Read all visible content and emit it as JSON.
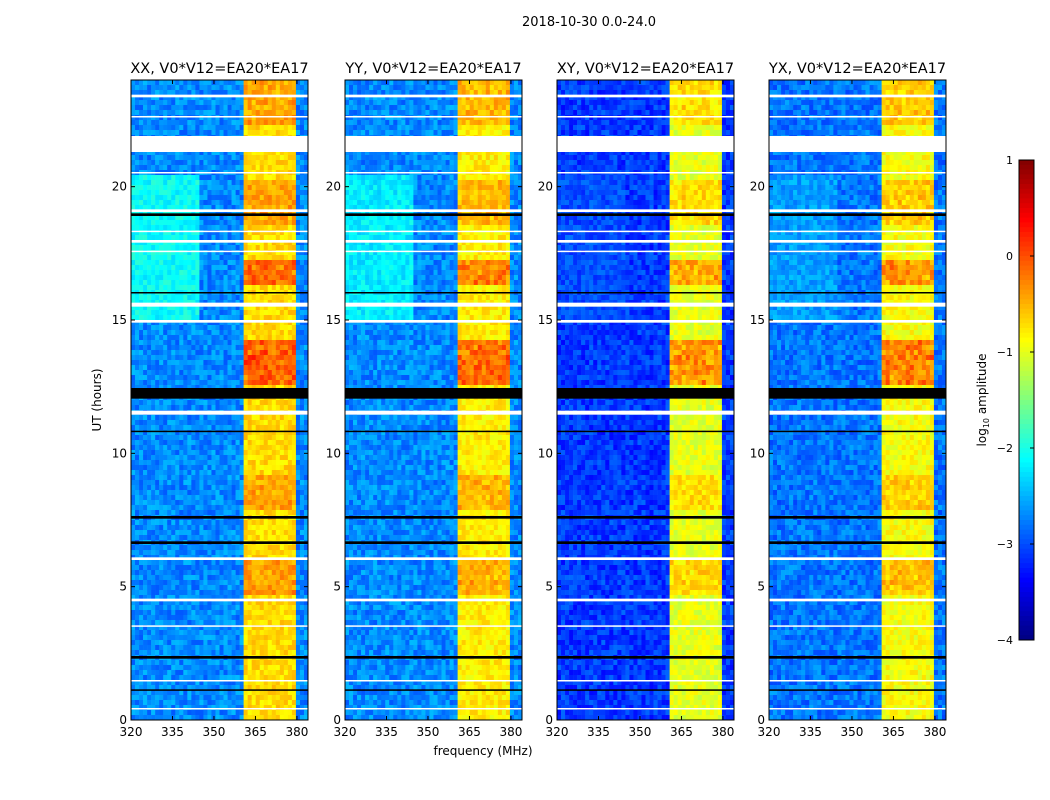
{
  "chart_data": {
    "type": "heatmap",
    "title": "2018-10-30 0.0-24.0",
    "xlabel": "frequency (MHz)",
    "ylabel": "UT (hours)",
    "xlim": [
      320,
      384
    ],
    "ylim": [
      0,
      24
    ],
    "xticks": [
      "320",
      "335",
      "350",
      "365",
      "380"
    ],
    "xtick_values": [
      320,
      335,
      350,
      365,
      380
    ],
    "yticks": [
      "0",
      "5",
      "10",
      "15",
      "20"
    ],
    "ytick_values": [
      0,
      5,
      10,
      15,
      20
    ],
    "colorbar": {
      "label_main": "log",
      "label_sub": "10",
      "label_rest": " amplitude",
      "range": [
        -4,
        1
      ],
      "ticks": [
        "1",
        "0",
        "−1",
        "−2",
        "−3",
        "−4"
      ],
      "tick_values": [
        1,
        0,
        -1,
        -2,
        -3,
        -4
      ],
      "colormap": "jet"
    },
    "panels": [
      {
        "title": "XX, V0*V12=EA20*EA17",
        "background_level": -2.7,
        "band_level": -0.7,
        "left_bright_level": -2.1
      },
      {
        "title": "YY, V0*V12=EA20*EA17",
        "background_level": -2.7,
        "band_level": -0.8,
        "left_bright_level": -2.2
      },
      {
        "title": "XY, V0*V12=EA20*EA17",
        "background_level": -3.1,
        "band_level": -1.0,
        "left_bright_level": -3.0
      },
      {
        "title": "YX, V0*V12=EA20*EA17",
        "background_level": -2.8,
        "band_level": -0.9,
        "left_bright_level": -2.6
      }
    ],
    "band_segments_mhz": [
      [
        360.5,
        364.8
      ],
      [
        365.2,
        369.6
      ],
      [
        370.0,
        374.8
      ],
      [
        375.2,
        379.6
      ]
    ],
    "bright_hours": [
      [
        12.6,
        14.3,
        0.7
      ],
      [
        16.4,
        17.2,
        0.6
      ],
      [
        7.9,
        9.2,
        0.3
      ],
      [
        4.6,
        6.0,
        0.35
      ],
      [
        18.6,
        20.3,
        0.3
      ],
      [
        22.3,
        24,
        0.3
      ]
    ],
    "flagged_hours_white": [
      [
        21.3,
        21.9
      ],
      [
        19.05,
        19.15
      ],
      [
        15.5,
        15.65
      ],
      [
        11.45,
        11.6
      ],
      [
        6.0,
        6.1
      ],
      [
        4.45,
        4.55
      ],
      [
        23.35,
        23.45
      ],
      [
        17.9,
        18.0
      ],
      [
        18.3,
        18.35
      ],
      [
        14.9,
        15.0
      ],
      [
        3.5,
        3.55
      ],
      [
        1.45,
        1.5
      ],
      [
        0.4,
        0.45
      ],
      [
        22.6,
        22.65
      ],
      [
        20.5,
        20.55
      ],
      [
        17.55,
        17.6
      ]
    ],
    "flagged_hours_black": [
      [
        12.05,
        12.45
      ],
      [
        18.9,
        19.0
      ],
      [
        7.55,
        7.65
      ],
      [
        2.3,
        2.4
      ],
      [
        10.8,
        10.85
      ],
      [
        16.0,
        16.05
      ],
      [
        1.1,
        1.15
      ],
      [
        6.6,
        6.7
      ]
    ]
  }
}
